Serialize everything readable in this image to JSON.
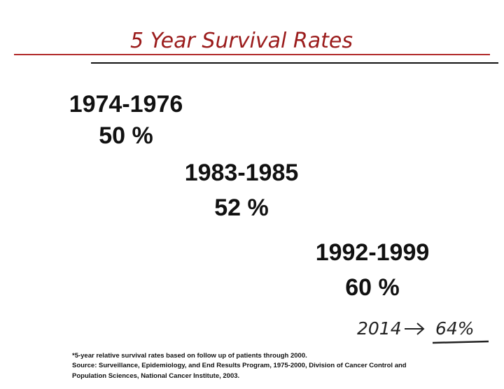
{
  "header": {
    "title": "5 Year Survival Rates"
  },
  "periods": [
    {
      "years": "1974-1976",
      "rate": "50 %"
    },
    {
      "years": "1983-1985",
      "rate": "52 %"
    },
    {
      "years": "1992-1999",
      "rate": "60 %"
    }
  ],
  "annotation": {
    "year": "2014",
    "rate": "64%"
  },
  "footnote": {
    "lines": [
      "*5-year relative survival rates based on follow up of patients through 2000.",
      "Source: Surveillance, Epidemiology, and End Results Program, 1975-2000, Division of Cancer Control and",
      "Population Sciences, National Cancer Institute, 2003."
    ]
  }
}
